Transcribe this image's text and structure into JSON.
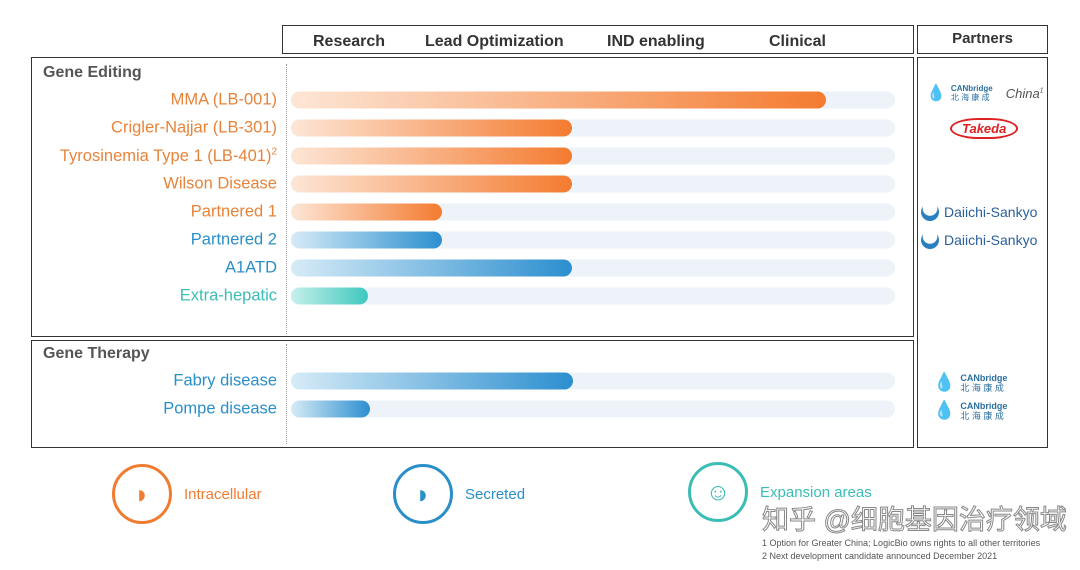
{
  "stages": [
    "Research",
    "Lead Optimization",
    "IND enabling",
    "Clinical"
  ],
  "partners_header": "Partners",
  "colors": {
    "orange": "#f47b30",
    "blue": "#2c8fcf",
    "teal": "#3ec8bd"
  },
  "sections": [
    {
      "title": "Gene Editing",
      "programs": [
        {
          "label": "MMA (LB-001)",
          "color": "orange",
          "progress": 0.886
        },
        {
          "label": "Crigler-Najjar (LB-301)",
          "color": "orange",
          "progress": 0.465
        },
        {
          "label": "Tyrosinemia Type 1 (LB-401)",
          "sup": "2",
          "color": "orange",
          "progress": 0.465
        },
        {
          "label": "Wilson Disease",
          "color": "orange",
          "progress": 0.465
        },
        {
          "label": "Partnered 1",
          "color": "orange",
          "progress": 0.25
        },
        {
          "label": "Partnered 2",
          "color": "blue",
          "progress": 0.25
        },
        {
          "label": "A1ATD",
          "color": "blue",
          "progress": 0.465
        },
        {
          "label": "Extra-hepatic",
          "color": "teal",
          "progress": 0.127
        }
      ]
    },
    {
      "title": "Gene Therapy",
      "programs": [
        {
          "label": "Fabry disease",
          "color": "blue",
          "progress": 0.467
        },
        {
          "label": "Pompe disease",
          "color": "blue",
          "progress": 0.13
        }
      ]
    }
  ],
  "partners": {
    "mma": {
      "name": "CANbridge",
      "sub": "北 海 康 成",
      "note": "China",
      "note_sup": "1"
    },
    "crigler": {
      "name": "Takeda"
    },
    "p1": {
      "name": "Daiichi-Sankyo"
    },
    "p2": {
      "name": "Daiichi-Sankyo"
    },
    "fabry": {
      "name": "CANbridge",
      "sub": "北 海 康 成"
    },
    "pompe": {
      "name": "CANbridge",
      "sub": "北 海 康 成"
    }
  },
  "legend": [
    {
      "label": "Intracellular",
      "icon": "liver-icon"
    },
    {
      "label": "Secreted",
      "icon": "liver-icon"
    },
    {
      "label": "Expansion areas",
      "icon": "body-icon"
    }
  ],
  "footnotes": [
    "1 Option for Greater China; LogicBio owns rights to all other territories",
    "2 Next development candidate announced December 2021"
  ],
  "watermark": "知乎 @细胞基因治疗领域"
}
